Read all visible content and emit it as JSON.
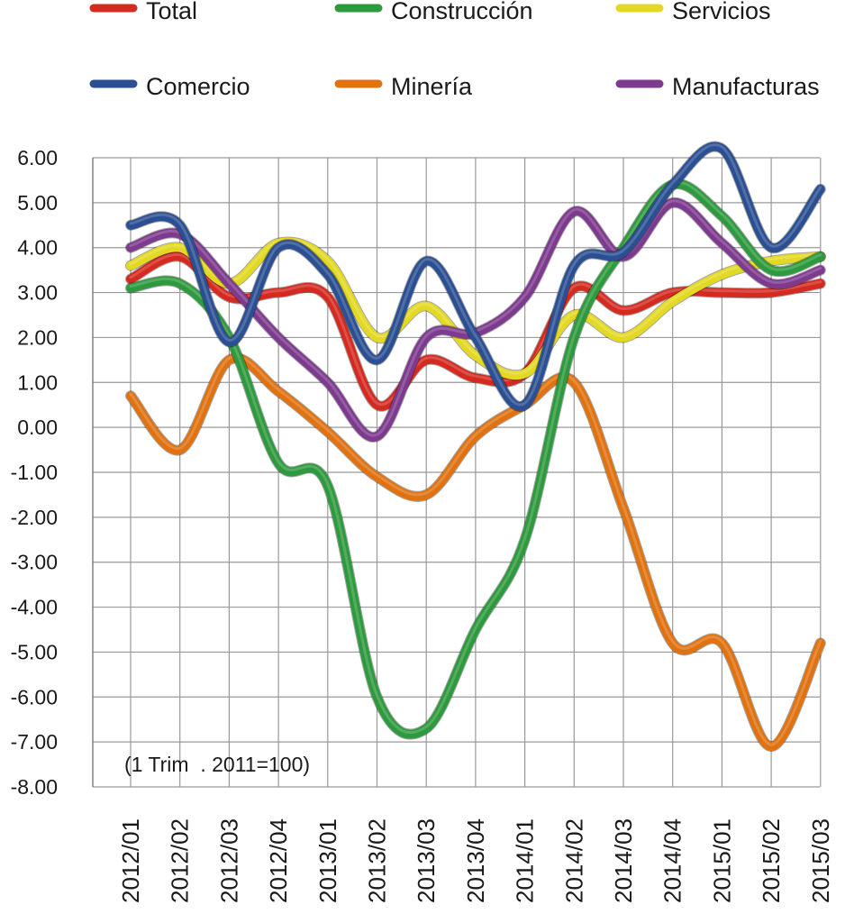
{
  "chart_data": {
    "type": "line",
    "categories": [
      "2012/01",
      "2012/02",
      "2012/03",
      "2012/04",
      "2013/01",
      "2013/02",
      "2013/03",
      "2013/04",
      "2014/01",
      "2014/02",
      "2014/03",
      "2014/04",
      "2015/01",
      "2015/02",
      "2015/03"
    ],
    "ylim": [
      -8,
      6
    ],
    "yticks": [
      "6.00",
      "5.00",
      "4.00",
      "3.00",
      "2.00",
      "1.00",
      "0.00",
      "-1.00",
      "-2.00",
      "-3.00",
      "-4.00",
      "-5.00",
      "-6.00",
      "-7.00",
      "-8.00"
    ],
    "grid": true,
    "legend_position": "top",
    "annotation": "(1 Trim  . 2011=100)",
    "series": [
      {
        "name": "Total",
        "color": "#d42a20",
        "values": [
          3.3,
          3.8,
          2.9,
          3.0,
          2.9,
          0.5,
          1.5,
          1.1,
          1.2,
          3.1,
          2.6,
          3.0,
          3.0,
          3.0,
          3.2
        ]
      },
      {
        "name": "Construcción",
        "color": "#2e9a3e",
        "values": [
          3.1,
          3.2,
          2.0,
          -0.8,
          -1.3,
          -6.0,
          -6.7,
          -4.5,
          -2.5,
          2.0,
          4.0,
          5.4,
          4.7,
          3.5,
          3.8
        ]
      },
      {
        "name": "Servicios",
        "color": "#e3d923",
        "values": [
          3.6,
          4.0,
          3.2,
          4.1,
          3.7,
          2.0,
          2.7,
          1.6,
          1.2,
          2.5,
          2.0,
          2.8,
          3.4,
          3.7,
          3.8
        ]
      },
      {
        "name": "Comercio",
        "color": "#2b4f93",
        "values": [
          4.5,
          4.5,
          1.9,
          4.0,
          3.4,
          1.5,
          3.7,
          2.0,
          0.5,
          3.6,
          3.9,
          5.4,
          6.2,
          4.0,
          5.3
        ]
      },
      {
        "name": "Minería",
        "color": "#e07210",
        "values": [
          0.7,
          -0.5,
          1.5,
          0.8,
          -0.1,
          -1.1,
          -1.5,
          -0.2,
          0.5,
          1.0,
          -1.8,
          -4.8,
          -4.8,
          -7.1,
          -4.8
        ]
      },
      {
        "name": "Manufacturas",
        "color": "#7d3a8e",
        "values": [
          4.0,
          4.3,
          3.2,
          2.0,
          1.0,
          -0.2,
          2.0,
          2.1,
          2.9,
          4.8,
          3.8,
          5.0,
          4.1,
          3.2,
          3.5
        ]
      }
    ]
  }
}
